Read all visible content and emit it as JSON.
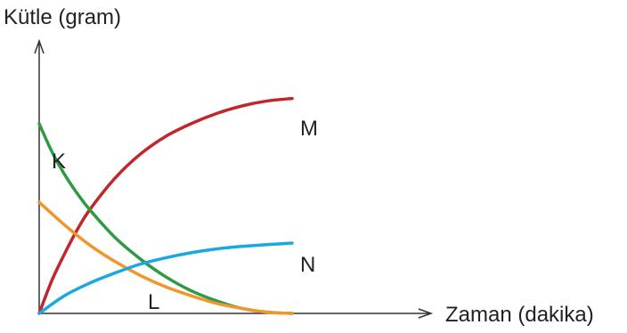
{
  "chart_data": {
    "type": "line",
    "title": "",
    "xlabel": "Zaman (dakika)",
    "ylabel": "Kütle (gram)",
    "xlim": [
      0,
      10
    ],
    "ylim": [
      0,
      10
    ],
    "grid": false,
    "legend": "none",
    "series": [
      {
        "name": "M",
        "color": "#c0272d",
        "x": [
          0,
          0.5,
          1,
          1.5,
          2,
          3,
          4,
          5,
          6,
          7,
          8,
          9,
          10
        ],
        "y": [
          0,
          1.3,
          2.35,
          3.3,
          4.1,
          5.35,
          6.3,
          7.0,
          7.5,
          7.9,
          8.2,
          8.4,
          8.5
        ]
      },
      {
        "name": "K",
        "color": "#2e9a45",
        "x": [
          0,
          0.5,
          1,
          1.5,
          2,
          3,
          4,
          5,
          6,
          7,
          8,
          9,
          10
        ],
        "y": [
          7.5,
          6.4,
          5.5,
          4.75,
          4.1,
          3.0,
          2.15,
          1.45,
          0.9,
          0.5,
          0.2,
          0.05,
          0
        ]
      },
      {
        "name": "L",
        "color": "#f0962d",
        "x": [
          0,
          1,
          2,
          3,
          4,
          5,
          6,
          7,
          8,
          9,
          10
        ],
        "y": [
          4.4,
          3.5,
          2.7,
          2.05,
          1.5,
          1.05,
          0.7,
          0.4,
          0.2,
          0.05,
          0
        ]
      },
      {
        "name": "N",
        "color": "#1ba8e0",
        "x": [
          0,
          1,
          2,
          3,
          4,
          5,
          6,
          7,
          8,
          9,
          10
        ],
        "y": [
          0,
          0.7,
          1.2,
          1.6,
          1.95,
          2.2,
          2.4,
          2.55,
          2.65,
          2.72,
          2.78
        ]
      }
    ],
    "series_labels": [
      "M",
      "K",
      "L",
      "N"
    ]
  }
}
